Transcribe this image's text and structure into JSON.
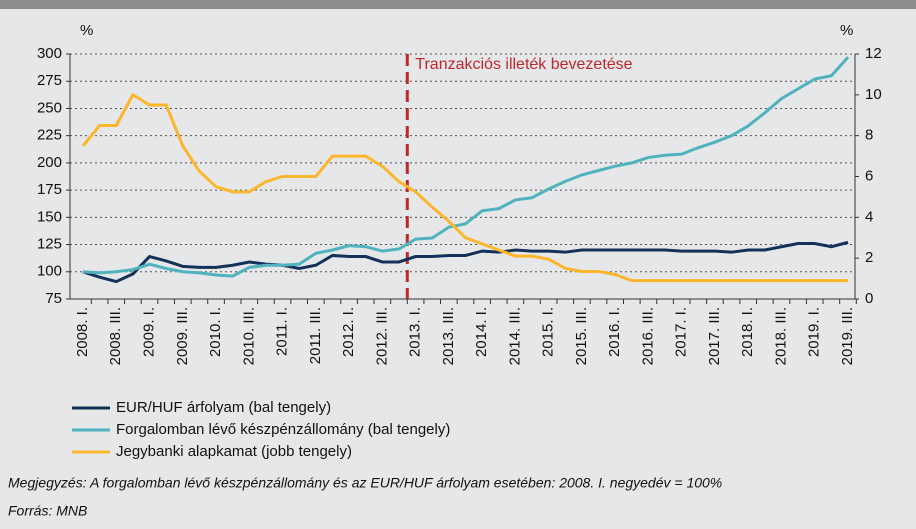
{
  "chart_data": {
    "type": "line",
    "y_unit": "%",
    "y2_unit": "%",
    "annotation": {
      "text": "Tranzakciós illeték bevezetése",
      "x": "2013. I.",
      "color": "#c0272d"
    },
    "categories": [
      "2008. I.",
      null,
      "2008. III.",
      null,
      "2009. I.",
      null,
      "2009. III.",
      null,
      "2010. I.",
      null,
      "2010. III.",
      null,
      "2011. I.",
      null,
      "2011. III.",
      null,
      "2012. I.",
      null,
      "2012. III.",
      null,
      "2013. I.",
      null,
      "2013. III.",
      null,
      "2014. I.",
      null,
      "2014. III.",
      null,
      "2015. I.",
      null,
      "2015. III.",
      null,
      "2016. I.",
      null,
      "2016. III.",
      null,
      "2017. I.",
      null,
      "2017. III.",
      null,
      "2018. I.",
      null,
      "2018. III.",
      null,
      "2019. I.",
      null,
      "2019. III."
    ],
    "series": [
      {
        "name": "EUR/HUF árfolyam (bal tengely)",
        "color": "#14315a",
        "axis": "y",
        "values": [
          100,
          95,
          91,
          98,
          114,
          110,
          105,
          104,
          104,
          106,
          109,
          107,
          106,
          103,
          106,
          115,
          114,
          114,
          109,
          109,
          114,
          114,
          115,
          115,
          119,
          118,
          120,
          119,
          119,
          118,
          120,
          120,
          120,
          120,
          120,
          120,
          119,
          119,
          119,
          118,
          120,
          120,
          123,
          126,
          126,
          123,
          127
        ]
      },
      {
        "name": "Forgalomban lévő készpénzállomány (bal tengely)",
        "color": "#4fb3bf",
        "axis": "y",
        "values": [
          100,
          99,
          100,
          102,
          107,
          103,
          100,
          99,
          97,
          96,
          104,
          106,
          106,
          107,
          117,
          120,
          124,
          123,
          119,
          121,
          130,
          131,
          141,
          144,
          156,
          158,
          166,
          168,
          176,
          183,
          189,
          193,
          197,
          200,
          205,
          207,
          208,
          214,
          219,
          225,
          234,
          246,
          259,
          268,
          277,
          280,
          297
        ]
      },
      {
        "name": "Jegybanki alapkamat (jobb tengely)",
        "color": "#fbb62b",
        "axis": "y2",
        "values": [
          7.5,
          8.5,
          8.5,
          10,
          9.5,
          9.5,
          7.5,
          6.25,
          5.5,
          5.25,
          5.25,
          5.75,
          6,
          6,
          6,
          7,
          7,
          7,
          6.5,
          5.75,
          5.25,
          4.5,
          3.8,
          3,
          2.7,
          2.4,
          2.1,
          2.1,
          1.95,
          1.5,
          1.35,
          1.35,
          1.2,
          0.9,
          0.9,
          0.9,
          0.9,
          0.9,
          0.9,
          0.9,
          0.9,
          0.9,
          0.9,
          0.9,
          0.9,
          0.9,
          0.9
        ]
      }
    ],
    "ylim": [
      75,
      300
    ],
    "yticks": [
      75,
      100,
      125,
      150,
      175,
      200,
      225,
      250,
      275,
      300
    ],
    "y2lim": [
      0,
      12
    ],
    "y2ticks": [
      0,
      2,
      4,
      6,
      8,
      10,
      12
    ],
    "grid": true
  },
  "note": "Megjegyzés: A forgalomban lévő készpénzállomány és az EUR/HUF árfolyam esetében: 2008. I. negyedév = 100%",
  "source": "Forrás: MNB"
}
